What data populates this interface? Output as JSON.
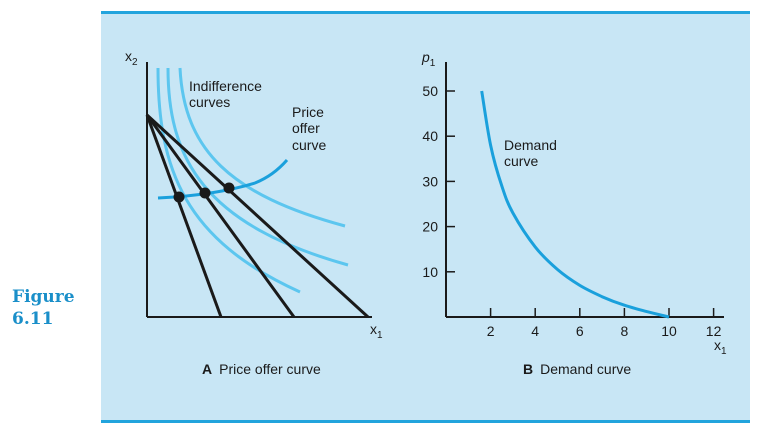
{
  "figure": {
    "label_line1": "Figure",
    "label_line2": "6.11"
  },
  "colors": {
    "accent": "#22a4dd",
    "panel_bg": "#c8e6f5",
    "indifference": "#5cc6ef",
    "curve": "#1aa0dc",
    "budget": "#1a1a1a"
  },
  "panel_a": {
    "y_axis_label": "x",
    "y_axis_sub": "2",
    "x_axis_label": "x",
    "x_axis_sub": "1",
    "indifference_label_line1": "Indifference",
    "indifference_label_line2": "curves",
    "price_offer_line1": "Price",
    "price_offer_line2": "offer",
    "price_offer_line3": "curve",
    "caption_letter": "A",
    "caption_text": "Price offer curve"
  },
  "panel_b": {
    "y_axis_label": "p",
    "y_axis_sub": "1",
    "x_axis_label": "x",
    "x_axis_sub": "1",
    "demand_label_line1": "Demand",
    "demand_label_line2": "curve",
    "caption_letter": "B",
    "caption_text": "Demand curve"
  },
  "chart_data": {
    "type": "line",
    "title": "",
    "xlabel": "x1",
    "ylabel": "p1",
    "x_ticks": [
      2,
      4,
      6,
      8,
      10,
      12
    ],
    "y_ticks": [
      10,
      20,
      30,
      40,
      50
    ],
    "xlim": [
      0,
      12
    ],
    "ylim": [
      0,
      50
    ],
    "series": [
      {
        "name": "Demand curve",
        "x": [
          1.6,
          2,
          2.5,
          3,
          4,
          5,
          6,
          7,
          8,
          9,
          10
        ],
        "y": [
          50,
          38,
          29,
          23,
          15.5,
          10.5,
          7,
          4.5,
          2.6,
          1.2,
          0
        ]
      }
    ]
  }
}
